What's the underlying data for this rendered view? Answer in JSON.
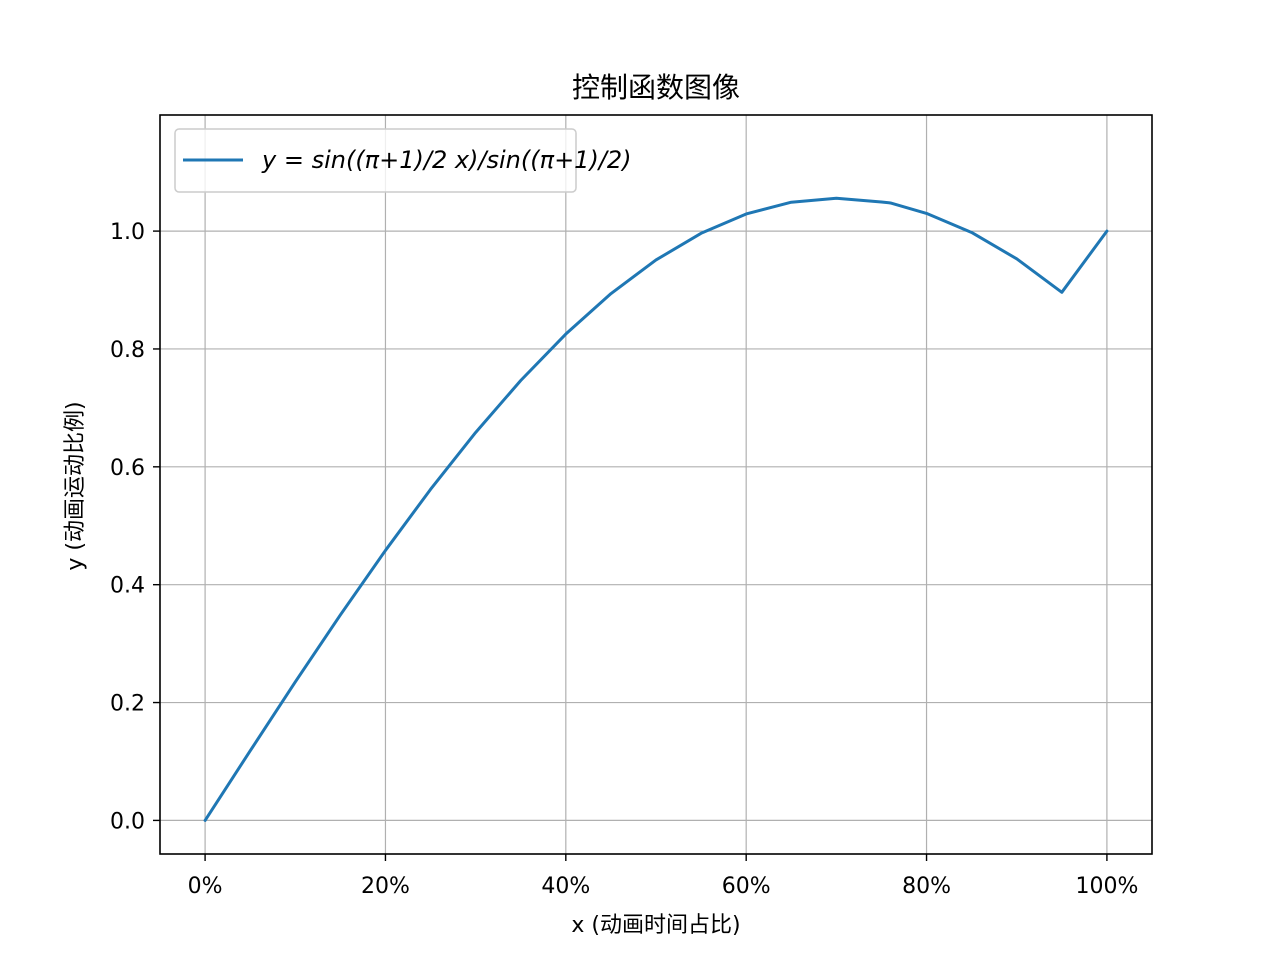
{
  "chart_data": {
    "type": "line",
    "title": "控制函数图像",
    "xlabel": "x (动画时间占比)",
    "ylabel": "y (动画运动比例)",
    "xlim": [
      -0.05,
      1.05
    ],
    "ylim": [
      -0.057,
      1.197
    ],
    "x_ticks": [
      0,
      0.2,
      0.4,
      0.6,
      0.8,
      1.0
    ],
    "x_tick_labels": [
      "0%",
      "20%",
      "40%",
      "60%",
      "80%",
      "100%"
    ],
    "y_ticks": [
      0,
      0.2,
      0.4,
      0.6,
      0.8,
      1.0
    ],
    "y_tick_labels": [
      "0.0",
      "0.2",
      "0.4",
      "0.6",
      "0.8",
      "1.0"
    ],
    "grid": true,
    "legend_position": "top-left",
    "series": [
      {
        "name": "y = sin((π+1)/2 x)/sin((π+1)/2)",
        "color": "#1f77b4",
        "x": [
          0,
          0.05,
          0.1,
          0.15,
          0.2,
          0.25,
          0.3,
          0.35,
          0.4,
          0.45,
          0.5,
          0.55,
          0.6,
          0.65,
          0.7,
          0.75,
          0.76,
          0.8,
          0.85,
          0.9,
          0.95,
          1.0
        ],
        "values": [
          0,
          0.1181,
          0.2349,
          0.3487,
          0.4581,
          0.5618,
          0.6583,
          0.7465,
          0.8253,
          0.8938,
          0.951,
          0.9963,
          1.0291,
          1.049,
          1.0558,
          1.0494,
          1.0477,
          1.03,
          0.9977,
          0.9529,
          0.8961,
          1.0
        ]
      }
    ]
  }
}
